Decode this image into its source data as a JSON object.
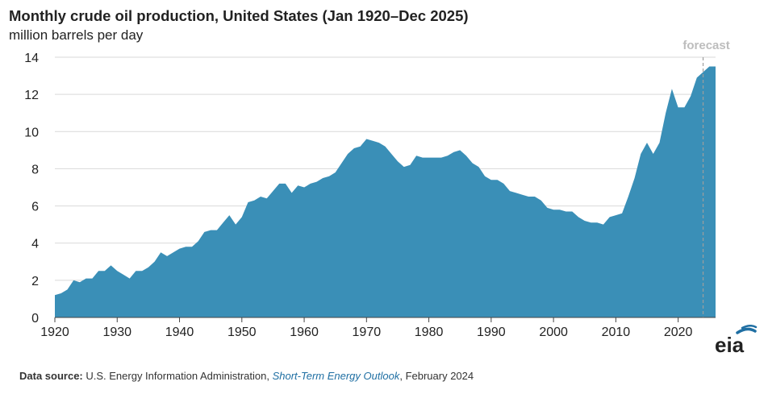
{
  "chart_data": {
    "type": "area",
    "title": "Monthly crude oil production, United States (Jan 1920–Dec 2025)",
    "ylabel": "million barrels per day",
    "xlabel": "",
    "xlim": [
      1920,
      2026
    ],
    "ylim": [
      0,
      14
    ],
    "x_ticks": [
      1920,
      1930,
      1940,
      1950,
      1960,
      1970,
      1980,
      1990,
      2000,
      2010,
      2020
    ],
    "y_ticks": [
      0,
      2,
      4,
      6,
      8,
      10,
      12,
      14
    ],
    "grid": "horizontal",
    "color": "#3a8fb7",
    "forecast_start": 2024.0,
    "forecast_label": "forecast",
    "forecast_line_color": "#9e9e9e",
    "series": [
      {
        "x": [
          1920,
          1921,
          1922,
          1923,
          1924,
          1925,
          1926,
          1927,
          1928,
          1929,
          1930,
          1931,
          1932,
          1933,
          1934,
          1935,
          1936,
          1937,
          1938,
          1939,
          1940,
          1941,
          1942,
          1943,
          1944,
          1945,
          1946,
          1947,
          1948,
          1949,
          1950,
          1951,
          1952,
          1953,
          1954,
          1955,
          1956,
          1957,
          1958,
          1959,
          1960,
          1961,
          1962,
          1963,
          1964,
          1965,
          1966,
          1967,
          1968,
          1969,
          1970,
          1971,
          1972,
          1973,
          1974,
          1975,
          1976,
          1977,
          1978,
          1979,
          1980,
          1981,
          1982,
          1983,
          1984,
          1985,
          1986,
          1987,
          1988,
          1989,
          1990,
          1991,
          1992,
          1993,
          1994,
          1995,
          1996,
          1997,
          1998,
          1999,
          2000,
          2001,
          2002,
          2003,
          2004,
          2005,
          2006,
          2007,
          2008,
          2009,
          2010,
          2011,
          2012,
          2013,
          2014,
          2015,
          2016,
          2017,
          2018,
          2019,
          2020,
          2021,
          2022,
          2023,
          2024,
          2025
        ],
        "y": [
          1.2,
          1.3,
          1.5,
          2.0,
          1.9,
          2.1,
          2.1,
          2.5,
          2.5,
          2.8,
          2.5,
          2.3,
          2.1,
          2.5,
          2.5,
          2.7,
          3.0,
          3.5,
          3.3,
          3.5,
          3.7,
          3.8,
          3.8,
          4.1,
          4.6,
          4.7,
          4.7,
          5.1,
          5.5,
          5.0,
          5.4,
          6.2,
          6.3,
          6.5,
          6.4,
          6.8,
          7.2,
          7.2,
          6.7,
          7.1,
          7.0,
          7.2,
          7.3,
          7.5,
          7.6,
          7.8,
          8.3,
          8.8,
          9.1,
          9.2,
          9.6,
          9.5,
          9.4,
          9.2,
          8.8,
          8.4,
          8.1,
          8.2,
          8.7,
          8.6,
          8.6,
          8.6,
          8.6,
          8.7,
          8.9,
          9.0,
          8.7,
          8.3,
          8.1,
          7.6,
          7.4,
          7.4,
          7.2,
          6.8,
          6.7,
          6.6,
          6.5,
          6.5,
          6.3,
          5.9,
          5.8,
          5.8,
          5.7,
          5.7,
          5.4,
          5.2,
          5.1,
          5.1,
          5.0,
          5.4,
          5.5,
          5.6,
          6.5,
          7.5,
          8.8,
          9.4,
          8.8,
          9.4,
          11.0,
          12.3,
          11.3,
          11.3,
          11.9,
          12.9,
          13.2,
          13.5
        ]
      }
    ]
  },
  "header": {
    "title": "Monthly crude oil production, United States (Jan 1920–Dec 2025)",
    "subtitle": "million barrels per day"
  },
  "footer": {
    "source_label": "Data source:",
    "source_text": " U.S. Energy Information Administration, ",
    "source_link": "Short-Term Energy Outlook",
    "source_date": ", February 2024"
  },
  "logo": {
    "text": "eia",
    "arc_color": "#1f6fa3"
  }
}
